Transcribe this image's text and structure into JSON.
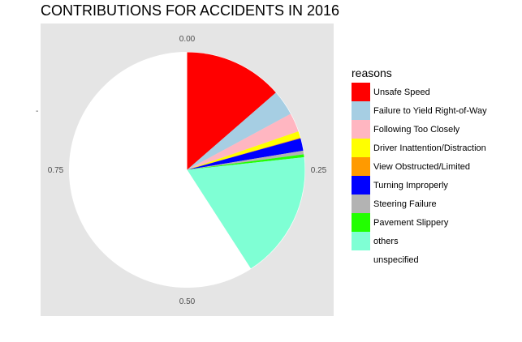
{
  "chart_data": {
    "type": "pie",
    "title": "CONTRIBUTIONS FOR ACCIDENTS IN 2016",
    "legend_title": "reasons",
    "legend_position": "right",
    "theta_ticks": [
      "0.00",
      "0.25",
      "0.50",
      "0.75"
    ],
    "y_tick_label": "-",
    "background_color": "#e5e5e5",
    "grid_color": "#ffffff",
    "slices": [
      {
        "name": "Unsafe Speed",
        "value": 0.136,
        "color": "#ff0000"
      },
      {
        "name": "Failure to Yield Right-of-Way",
        "value": 0.035,
        "color": "#a6cee3"
      },
      {
        "name": "Following Too Closely",
        "value": 0.026,
        "color": "#ffb6c1"
      },
      {
        "name": "Driver Inattention/Distraction",
        "value": 0.009,
        "color": "#ffff00"
      },
      {
        "name": "View Obstructed/Limited",
        "value": 0.001,
        "color": "#ff9a00"
      },
      {
        "name": "Turning Improperly",
        "value": 0.017,
        "color": "#0000ff"
      },
      {
        "name": "Steering Failure",
        "value": 0.005,
        "color": "#b3b3b3"
      },
      {
        "name": "Pavement Slippery",
        "value": 0.004,
        "color": "#22ff00"
      },
      {
        "name": "others",
        "value": 0.176,
        "color": "#7fffd4"
      },
      {
        "name": "unspecified",
        "value": 0.591,
        "color": "#ffffff"
      }
    ]
  }
}
